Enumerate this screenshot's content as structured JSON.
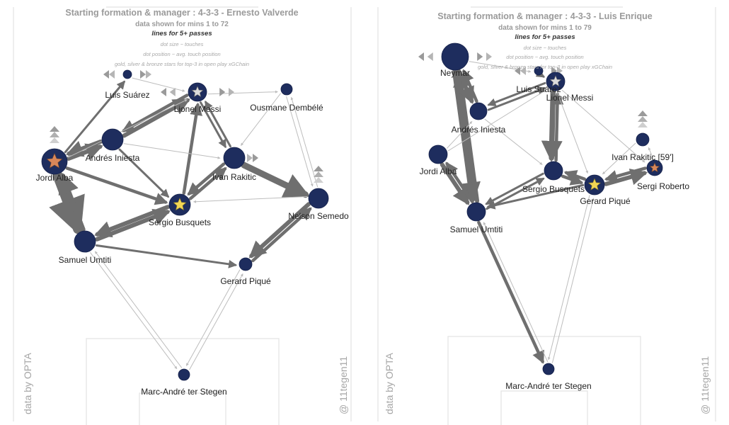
{
  "colors": {
    "node": "#1e2d5e",
    "edge": "#6f6f6f",
    "edge_light": "#bdbdbd",
    "pitch": "#e2e2e2",
    "gold": "#f2d654",
    "silver": "#dcdcdc",
    "bronze": "#d9875a"
  },
  "icons": {
    "star": "star-icon",
    "triangle": "triangle-marker-icon"
  },
  "panels": [
    {
      "title": "Starting formation & manager : 4-3-3 - Ernesto Valverde",
      "subtitle": "data shown for mins 1 to 72",
      "lines_note": "lines for 5+ passes",
      "legend": [
        "dot size ~ touches",
        "dot position ~ avg. touch position",
        "gold, silver & bronze stars for top-3 in open play xGChain"
      ],
      "credit_left": "data by OPTA",
      "credit_right": "@ 11tegen11",
      "players": [
        {
          "id": "suarez",
          "name": "Luis Suárez",
          "r": 6,
          "star": "",
          "marker": "lr"
        },
        {
          "id": "messi",
          "name": "Lionel Messi",
          "r": 13,
          "star": "silver",
          "marker": "lr"
        },
        {
          "id": "dembele",
          "name": "Ousmane Dembélé",
          "r": 8,
          "star": "",
          "marker": ""
        },
        {
          "id": "iniesta",
          "name": "Andrés Iniesta",
          "r": 15,
          "star": "",
          "marker": ""
        },
        {
          "id": "alba",
          "name": "Jordi Alba",
          "r": 18,
          "star": "bronze",
          "marker": "up"
        },
        {
          "id": "rakitic",
          "name": "Ivan Rakitic",
          "r": 15,
          "star": "",
          "marker": "r"
        },
        {
          "id": "busquets",
          "name": "Sergio Busquets",
          "r": 15,
          "star": "gold",
          "marker": ""
        },
        {
          "id": "semedo",
          "name": "Nelson Semedo",
          "r": 14,
          "star": "",
          "marker": "up"
        },
        {
          "id": "umtiti",
          "name": "Samuel Umtiti",
          "r": 15,
          "star": "",
          "marker": ""
        },
        {
          "id": "pique",
          "name": "Gerard Piqué",
          "r": 9,
          "star": "",
          "marker": ""
        },
        {
          "id": "terstegen",
          "name": "Marc-André ter Stegen",
          "r": 8,
          "star": "",
          "marker": ""
        }
      ],
      "passes": [
        {
          "from": "alba",
          "to": "umtiti",
          "w": 9
        },
        {
          "from": "umtiti",
          "to": "alba",
          "w": 5
        },
        {
          "from": "alba",
          "to": "iniesta",
          "w": 4
        },
        {
          "from": "iniesta",
          "to": "alba",
          "w": 4
        },
        {
          "from": "iniesta",
          "to": "messi",
          "w": 4
        },
        {
          "from": "messi",
          "to": "iniesta",
          "w": 3
        },
        {
          "from": "busquets",
          "to": "umtiti",
          "w": 4
        },
        {
          "from": "umtiti",
          "to": "busquets",
          "w": 4
        },
        {
          "from": "rakitic",
          "to": "semedo",
          "w": 6
        },
        {
          "from": "semedo",
          "to": "pique",
          "w": 4
        },
        {
          "from": "pique",
          "to": "semedo",
          "w": 3
        },
        {
          "from": "busquets",
          "to": "messi",
          "w": 3
        },
        {
          "from": "rakitic",
          "to": "busquets",
          "w": 3
        },
        {
          "from": "busquets",
          "to": "rakitic",
          "w": 3
        },
        {
          "from": "alba",
          "to": "busquets",
          "w": 3
        },
        {
          "from": "rakitic",
          "to": "messi",
          "w": 2
        },
        {
          "from": "messi",
          "to": "rakitic",
          "w": 2
        },
        {
          "from": "umtiti",
          "to": "pique",
          "w": 2
        },
        {
          "from": "alba",
          "to": "suarez",
          "w": 2
        },
        {
          "from": "iniesta",
          "to": "busquets",
          "w": 2
        },
        {
          "from": "messi",
          "to": "dembele",
          "w": 1
        },
        {
          "from": "dembele",
          "to": "semedo",
          "w": 1
        },
        {
          "from": "semedo",
          "to": "dembele",
          "w": 1
        },
        {
          "from": "terstegen",
          "to": "umtiti",
          "w": 1
        },
        {
          "from": "terstegen",
          "to": "pique",
          "w": 1
        },
        {
          "from": "pique",
          "to": "terstegen",
          "w": 1
        },
        {
          "from": "umtiti",
          "to": "terstegen",
          "w": 1
        },
        {
          "from": "iniesta",
          "to": "rakitic",
          "w": 1
        },
        {
          "from": "alba",
          "to": "messi",
          "w": 1
        },
        {
          "from": "suarez",
          "to": "messi",
          "w": 1
        },
        {
          "from": "dembele",
          "to": "rakitic",
          "w": 1
        },
        {
          "from": "semedo",
          "to": "busquets",
          "w": 1
        }
      ]
    },
    {
      "title": "Starting formation & manager : 4-3-3 - Luis Enrique",
      "subtitle": "data shown for mins 1 to 79",
      "lines_note": "lines for 5+ passes",
      "legend": [
        "dot size ~ touches",
        "dot position ~ avg. touch position",
        "gold, silver & bronze stars for top-3 in open play xGChain"
      ],
      "credit_left": "data by OPTA",
      "credit_right": "@ 11tegen11",
      "players": [
        {
          "id": "neymar",
          "name": "Neymar",
          "r": 19,
          "star": "",
          "marker": "lr"
        },
        {
          "id": "suarez",
          "name": "Luis Suárez",
          "r": 6,
          "star": "",
          "marker": "lr"
        },
        {
          "id": "messi",
          "name": "Lionel Messi",
          "r": 13,
          "star": "silver",
          "marker": ""
        },
        {
          "id": "iniesta",
          "name": "Andrés Iniesta",
          "r": 12,
          "star": "",
          "marker": ""
        },
        {
          "id": "alba",
          "name": "Jordi Alba",
          "r": 13,
          "star": "",
          "marker": ""
        },
        {
          "id": "rakitic",
          "name": "Ivan Rakitic [59']",
          "r": 9,
          "star": "",
          "marker": "up"
        },
        {
          "id": "busquets",
          "name": "Sergio Busquets",
          "r": 13,
          "star": "",
          "marker": ""
        },
        {
          "id": "pique",
          "name": "Gerard Piqué",
          "r": 14,
          "star": "gold",
          "marker": ""
        },
        {
          "id": "roberto",
          "name": "Sergi Roberto",
          "r": 11,
          "star": "bronze",
          "marker": ""
        },
        {
          "id": "umtiti",
          "name": "Samuel Umtiti",
          "r": 13,
          "star": "",
          "marker": ""
        },
        {
          "id": "terstegen",
          "name": "Marc-André ter Stegen",
          "r": 8,
          "star": "",
          "marker": ""
        }
      ],
      "passes": [
        {
          "from": "neymar",
          "to": "umtiti",
          "w": 5
        },
        {
          "from": "umtiti",
          "to": "neymar",
          "w": 4
        },
        {
          "from": "neymar",
          "to": "iniesta",
          "w": 4
        },
        {
          "from": "iniesta",
          "to": "neymar",
          "w": 3
        },
        {
          "from": "alba",
          "to": "umtiti",
          "w": 4
        },
        {
          "from": "umtiti",
          "to": "alba",
          "w": 3
        },
        {
          "from": "messi",
          "to": "busquets",
          "w": 5
        },
        {
          "from": "busquets",
          "to": "messi",
          "w": 3
        },
        {
          "from": "busquets",
          "to": "pique",
          "w": 3
        },
        {
          "from": "pique",
          "to": "busquets",
          "w": 3
        },
        {
          "from": "pique",
          "to": "roberto",
          "w": 4
        },
        {
          "from": "roberto",
          "to": "pique",
          "w": 3
        },
        {
          "from": "umtiti",
          "to": "terstegen",
          "w": 3
        },
        {
          "from": "iniesta",
          "to": "messi",
          "w": 2
        },
        {
          "from": "messi",
          "to": "iniesta",
          "w": 2
        },
        {
          "from": "umtiti",
          "to": "busquets",
          "w": 2
        },
        {
          "from": "busquets",
          "to": "umtiti",
          "w": 2
        },
        {
          "from": "pique",
          "to": "umtiti",
          "w": 2
        },
        {
          "from": "suarez",
          "to": "messi",
          "w": 2
        },
        {
          "from": "neymar",
          "to": "suarez",
          "w": 1
        },
        {
          "from": "messi",
          "to": "roberto",
          "w": 1
        },
        {
          "from": "rakitic",
          "to": "pique",
          "w": 1
        },
        {
          "from": "pique",
          "to": "terstegen",
          "w": 1
        },
        {
          "from": "terstegen",
          "to": "pique",
          "w": 1
        },
        {
          "from": "terstegen",
          "to": "umtiti",
          "w": 1
        },
        {
          "from": "alba",
          "to": "iniesta",
          "w": 1
        },
        {
          "from": "messi",
          "to": "pique",
          "w": 1
        },
        {
          "from": "iniesta",
          "to": "busquets",
          "w": 1
        },
        {
          "from": "alba",
          "to": "messi",
          "w": 1
        },
        {
          "from": "roberto",
          "to": "rakitic",
          "w": 1
        }
      ]
    }
  ]
}
